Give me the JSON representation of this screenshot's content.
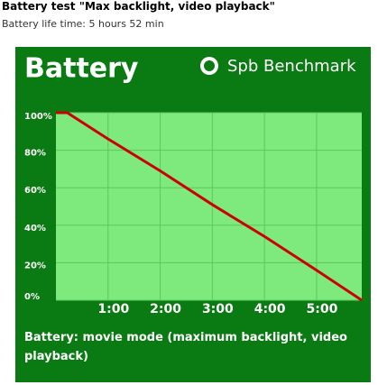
{
  "header": {
    "title": "Battery test \"Max backlight, video playback\"",
    "subtitle": "Battery life time: 5 hours 52 min"
  },
  "chart_data": {
    "type": "line",
    "title": "Battery",
    "brand": "Spb Benchmark",
    "caption": "Battery: movie mode (maximum backlight, video playback)",
    "x": [
      0,
      13,
      60,
      120,
      180,
      240,
      300,
      352
    ],
    "series": [
      {
        "name": "Battery",
        "color": "#cc0000",
        "values": [
          100,
          100,
          86,
          69,
          51,
          34,
          16,
          0
        ]
      }
    ],
    "xlim": [
      0,
      352
    ],
    "xticks": [
      {
        "value": 60,
        "label": "1:00"
      },
      {
        "value": 120,
        "label": "2:00"
      },
      {
        "value": 180,
        "label": "3:00"
      },
      {
        "value": 240,
        "label": "4:00"
      },
      {
        "value": 300,
        "label": "5:00"
      }
    ],
    "ylim": [
      0,
      100
    ],
    "yticks": [
      {
        "value": 0,
        "label": "0%"
      },
      {
        "value": 20,
        "label": "20%"
      },
      {
        "value": 40,
        "label": "40%"
      },
      {
        "value": 60,
        "label": "60%"
      },
      {
        "value": 80,
        "label": "80%"
      },
      {
        "value": 100,
        "label": "100%"
      }
    ],
    "grid": true
  }
}
